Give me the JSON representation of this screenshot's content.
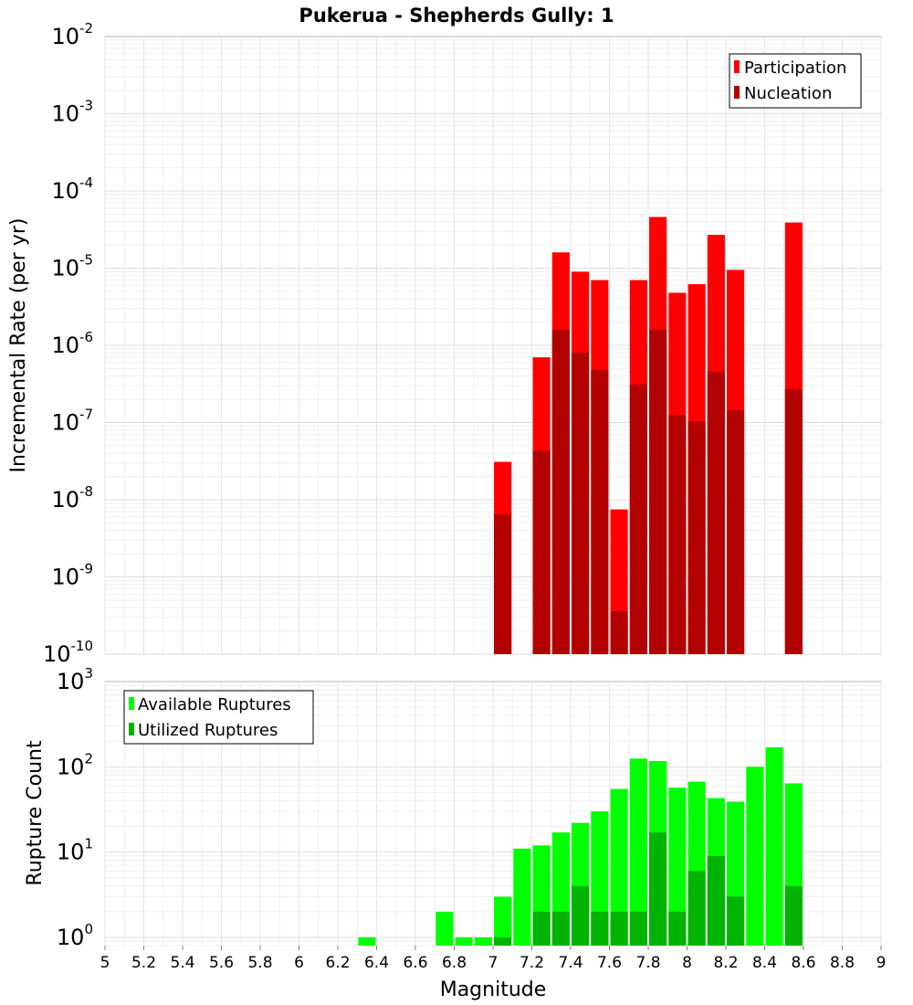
{
  "title": "Pukerua - Shepherds Gully: 1",
  "xlabel": "Magnitude",
  "chart_data": [
    {
      "type": "bar",
      "ylabel": "Incremental Rate (per yr)",
      "yscale": "log",
      "ylim": [
        1e-10,
        0.01
      ],
      "yticks": [
        "10",
        "10",
        "10",
        "10",
        "10",
        "10",
        "10",
        "10",
        "10"
      ],
      "yticks_exp": [
        "-2",
        "-3",
        "-4",
        "-5",
        "-6",
        "-7",
        "-8",
        "-9",
        "-10"
      ],
      "xlim": [
        5,
        9
      ],
      "bar_width": 0.09,
      "legend_position": "top-right",
      "grid": true,
      "overlay": true,
      "x": [
        7.05,
        7.25,
        7.35,
        7.45,
        7.55,
        7.75,
        7.85,
        7.95,
        8.05,
        8.15,
        8.25,
        8.55,
        7.65
      ],
      "series": [
        {
          "name": "Participation",
          "color": "#ff0000",
          "values": [
            3.1e-08,
            7e-07,
            1.6e-05,
            9e-06,
            7e-06,
            7e-06,
            4.6e-05,
            4.8e-06,
            6.2e-06,
            2.7e-05,
            9.5e-06,
            3.9e-05,
            7.5e-09
          ]
        },
        {
          "name": "Nucleation",
          "color": "#b30000",
          "values": [
            6.5e-09,
            4.3e-08,
            1.6e-06,
            8e-07,
            4.8e-07,
            3.1e-07,
            1.6e-06,
            1.25e-07,
            1.03e-07,
            4.6e-07,
            1.45e-07,
            2.7e-07,
            3.6e-10
          ]
        }
      ]
    },
    {
      "type": "bar",
      "ylabel": "Rupture Count",
      "yscale": "log",
      "ylim": [
        0.8,
        1000
      ],
      "yticks": [
        "10",
        "10",
        "10",
        "10"
      ],
      "yticks_exp": [
        "3",
        "2",
        "1",
        "0"
      ],
      "xlim": [
        5,
        9
      ],
      "bar_width": 0.09,
      "legend_position": "top-left",
      "grid": true,
      "overlay": true,
      "x": [
        6.35,
        6.75,
        6.85,
        6.95,
        7.05,
        7.15,
        7.25,
        7.35,
        7.45,
        7.55,
        7.65,
        7.75,
        7.85,
        7.95,
        8.05,
        8.15,
        8.25,
        8.35,
        8.45,
        8.55
      ],
      "series": [
        {
          "name": "Available Ruptures",
          "color": "#00ff00",
          "values": [
            1,
            2,
            1,
            1,
            3,
            11,
            12,
            17,
            22,
            30,
            55,
            125,
            117,
            57,
            67,
            43,
            39,
            100,
            170,
            64
          ]
        },
        {
          "name": "Utilized Ruptures",
          "color": "#00b300",
          "values": [
            0,
            0,
            0,
            0,
            1,
            0,
            2,
            2,
            4,
            2,
            2,
            2,
            17,
            2,
            6,
            9,
            3,
            0,
            0,
            4
          ]
        }
      ]
    }
  ],
  "xticks": [
    "5",
    "5.2",
    "5.4",
    "5.6",
    "5.8",
    "6",
    "6.2",
    "6.4",
    "6.6",
    "6.8",
    "7",
    "7.2",
    "7.4",
    "7.6",
    "7.8",
    "8",
    "8.2",
    "8.4",
    "8.6",
    "8.8",
    "9"
  ]
}
